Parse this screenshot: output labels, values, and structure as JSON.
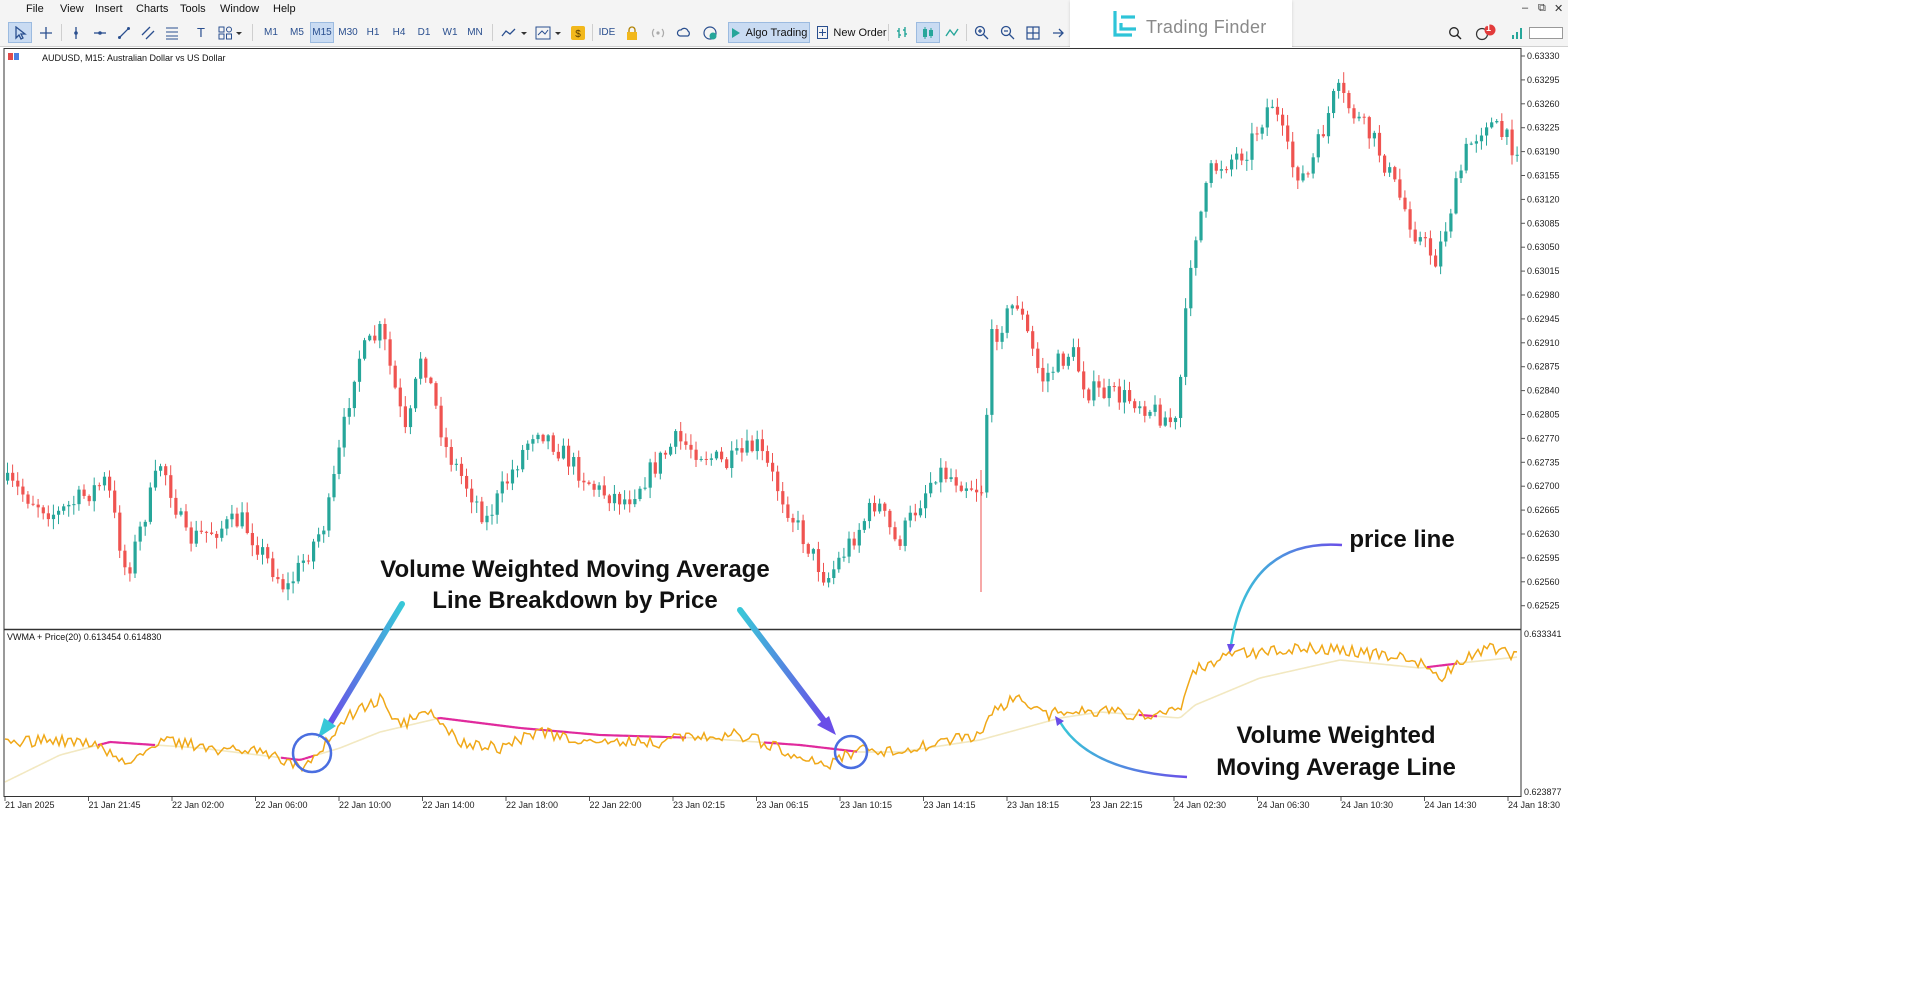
{
  "menu": [
    "File",
    "View",
    "Insert",
    "Charts",
    "Tools",
    "Window",
    "Help"
  ],
  "toolbar": {
    "timeframes": [
      "M1",
      "M5",
      "M15",
      "M30",
      "H1",
      "H4",
      "D1",
      "W1",
      "MN"
    ],
    "active_timeframe": "M15",
    "ide": "IDE",
    "algo_trading": "Algo Trading",
    "new_order": "New Order",
    "notification_count": "1"
  },
  "brand": "Trading Finder",
  "chart": {
    "title": "AUDUSD, M15:  Australian Dollar vs US Dollar",
    "indicator_title": "VWMA + Price(20) 0.613454 0.614830",
    "price_axis": [
      "0.63330",
      "0.63295",
      "0.63260",
      "0.63225",
      "0.63190",
      "0.63155",
      "0.63120",
      "0.63085",
      "0.63050",
      "0.63015",
      "0.62980",
      "0.62945",
      "0.62910",
      "0.62875",
      "0.62840",
      "0.62805",
      "0.62770",
      "0.62735",
      "0.62700",
      "0.62665",
      "0.62630",
      "0.62595",
      "0.62560",
      "0.62525"
    ],
    "indicator_axis": [
      "0.633341",
      "0.623877"
    ],
    "time_axis": [
      "21 Jan 2025",
      "21 Jan 21:45",
      "22 Jan 02:00",
      "22 Jan 06:00",
      "22 Jan 10:00",
      "22 Jan 14:00",
      "22 Jan 18:00",
      "22 Jan 22:00",
      "23 Jan 02:15",
      "23 Jan 06:15",
      "23 Jan 10:15",
      "23 Jan 14:15",
      "23 Jan 18:15",
      "23 Jan 22:15",
      "24 Jan 02:30",
      "24 Jan 06:30",
      "24 Jan 10:30",
      "24 Jan 14:30",
      "24 Jan 18:30"
    ],
    "colors": {
      "bull": "#26a69a",
      "bear": "#ef5350",
      "price_line": "#f0a818",
      "vwma_above": "#f2e8c0",
      "vwma_below": "#e0289c",
      "circle": "#4a6ee0"
    }
  },
  "annotations": {
    "breakdown_line1": "Volume Weighted Moving Average",
    "breakdown_line2": "Line Breakdown by Price",
    "price_line": "price line",
    "vwma_line1": "Volume Weighted",
    "vwma_line2": "Moving Average Line"
  }
}
